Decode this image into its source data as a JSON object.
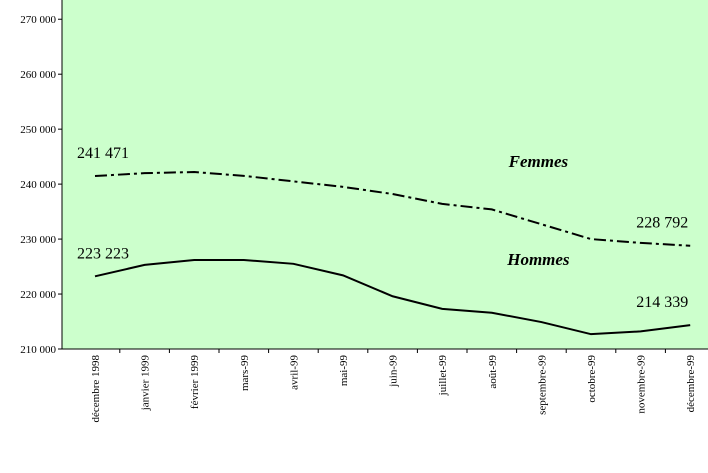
{
  "chart_data": {
    "type": "line",
    "categories": [
      "décembre 1998",
      "janvier 1999",
      "février 1999",
      "mars-99",
      "avril-99",
      "mai-99",
      "juin-99",
      "juillet-99",
      "août-99",
      "septembre-99",
      "octobre-99",
      "novembre-99",
      "décembre-99"
    ],
    "series": [
      {
        "name": "Femmes",
        "color": "#000000",
        "dash": "dashdot",
        "values": [
          241471,
          242000,
          242200,
          241500,
          240500,
          239500,
          238200,
          236400,
          235400,
          232700,
          230000,
          229300,
          228792
        ],
        "value_labels": [
          "241 471",
          null,
          null,
          null,
          null,
          null,
          null,
          null,
          null,
          null,
          null,
          null,
          "228 792"
        ]
      },
      {
        "name": "Hommes",
        "color": "#000000",
        "dash": "solid",
        "values": [
          223223,
          225300,
          226200,
          226200,
          225500,
          223400,
          219600,
          217300,
          216600,
          214900,
          212700,
          213200,
          214339
        ],
        "value_labels": [
          "223 223",
          null,
          null,
          null,
          null,
          null,
          null,
          null,
          null,
          null,
          null,
          null,
          "214 339"
        ]
      }
    ],
    "ylim": [
      210000,
      273500
    ],
    "yticks": [
      {
        "value": 210000,
        "label": "210 000"
      },
      {
        "value": 220000,
        "label": "220 000"
      },
      {
        "value": 230000,
        "label": "230 000"
      },
      {
        "value": 240000,
        "label": "240 000"
      },
      {
        "value": 250000,
        "label": "250 000"
      },
      {
        "value": 260000,
        "label": "260 000"
      },
      {
        "value": 270000,
        "label": "270 000"
      }
    ],
    "background": "#ccffcc"
  }
}
